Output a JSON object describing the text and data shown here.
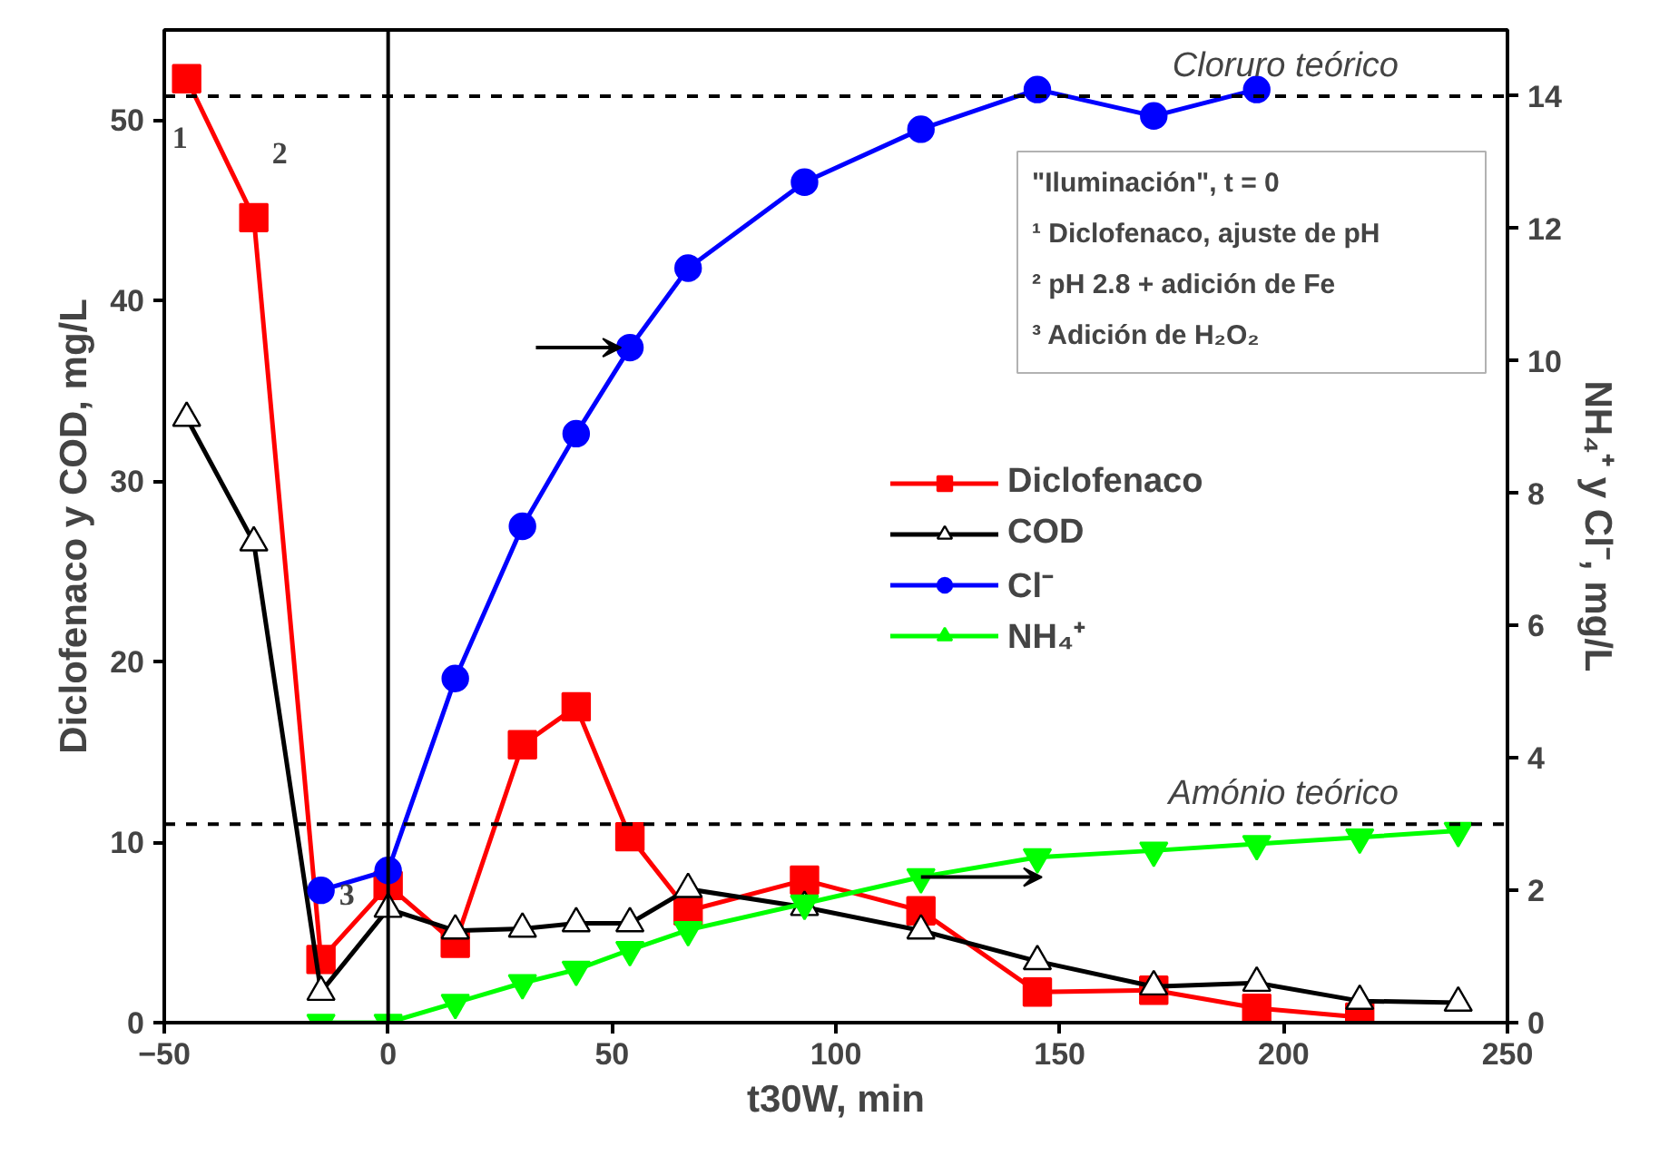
{
  "chart_data": {
    "type": "line",
    "x": [
      -45,
      -30,
      -15,
      0,
      15,
      30,
      42,
      54,
      67,
      93,
      119,
      145,
      171,
      194,
      217,
      239
    ],
    "series": [
      {
        "name": "Diclofenaco",
        "color": "#ff0000",
        "marker": "square",
        "values": [
          52.3,
          44.6,
          3.5,
          7.6,
          4.4,
          15.4,
          17.5,
          10.3,
          6.2,
          7.9,
          6.2,
          1.7,
          1.8,
          0.8,
          0.3,
          null
        ]
      },
      {
        "name": "COD",
        "color": "#000000",
        "marker": "triangle",
        "values": [
          33.5,
          26.6,
          1.7,
          6.3,
          5.1,
          5.2,
          5.5,
          5.5,
          7.4,
          6.4,
          5.1,
          3.4,
          2.0,
          2.2,
          1.2,
          1.1
        ]
      },
      {
        "name": "Cl⁻",
        "color": "#0000ff",
        "marker": "circle",
        "axis": "y2",
        "values": [
          null,
          null,
          2.0,
          2.3,
          5.2,
          7.5,
          8.9,
          10.2,
          11.4,
          12.7,
          13.5,
          14.1,
          13.7,
          14.1,
          null,
          null
        ]
      },
      {
        "name": "NH₄⁺",
        "color": "#00ff00",
        "marker": "triangle",
        "axis": "y2",
        "values": [
          null,
          null,
          0.0,
          0.0,
          0.3,
          0.6,
          0.8,
          1.1,
          1.4,
          1.8,
          2.2,
          2.5,
          2.6,
          2.7,
          2.8,
          2.9
        ]
      }
    ],
    "xlabel": "t30W, min",
    "ylabel": "Diclofenaco y COD, mg/L",
    "y2label": "NH₄⁺ y Cl⁻, mg/L",
    "xlim": [
      -50,
      250
    ],
    "xticks": [
      -50,
      0,
      50,
      100,
      150,
      200,
      250
    ],
    "ylim": [
      0,
      55
    ],
    "yticks": [
      0,
      10,
      20,
      30,
      40,
      50
    ],
    "y2lim": [
      0,
      15
    ],
    "y2ticks": [
      0,
      2,
      4,
      6,
      8,
      10,
      12,
      14
    ],
    "ref_lines": [
      {
        "axis": "x",
        "value": 0,
        "color": "#000000",
        "line_style": "solid"
      },
      {
        "axis": "y2",
        "value": 14,
        "label": "Cloruro teórico",
        "color": "#000000",
        "line_style": "dashed"
      },
      {
        "axis": "y2",
        "value": 3,
        "label": "Amónio teórico",
        "color": "#000000",
        "line_style": "dashed"
      }
    ],
    "annotations": [
      {
        "text": "1",
        "x": -45,
        "y": 52.3
      },
      {
        "text": "2",
        "x": -30,
        "y": 44.6
      },
      {
        "text": "3",
        "x": -15,
        "y": 3.5
      },
      "\"Iluminación\", t = 0",
      "¹ Diclofenaco, ajuste de pH",
      "² pH 2.8 + adición de Fe",
      "³ Adición de H₂O₂"
    ],
    "legend": "right",
    "grid": false,
    "line_style": "solid"
  }
}
